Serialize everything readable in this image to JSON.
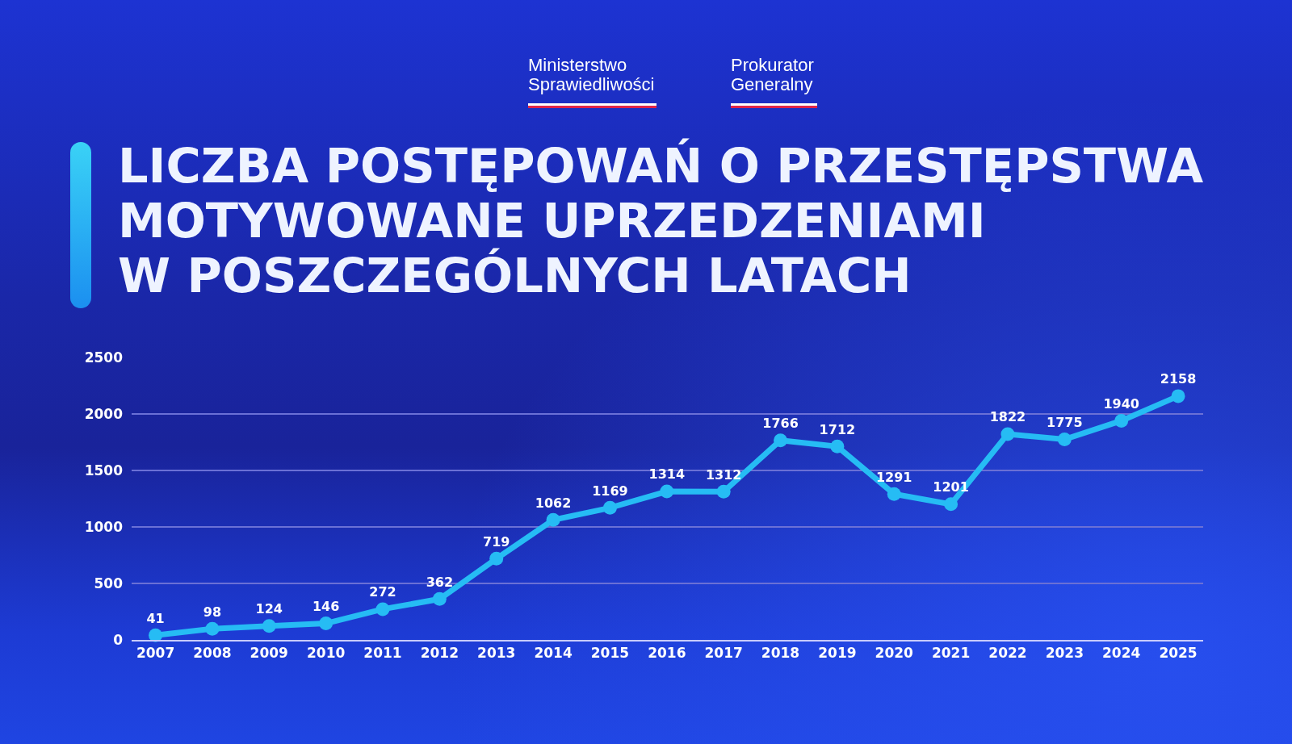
{
  "chart_data": {
    "type": "line",
    "title": "LICZBA POSTĘPOWAŃ O PRZESTĘPSTWA\nMOTYWOWANE UPRZEDZENIAMI\nW POSZCZEGÓLNYCH LATACH",
    "annotations": [
      "Ministerstwo Sprawiedliwości",
      "Prokurator Generalny"
    ],
    "categories": [
      "2007",
      "2008",
      "2009",
      "2010",
      "2011",
      "2012",
      "2013",
      "2014",
      "2015",
      "2016",
      "2017",
      "2018",
      "2019",
      "2020",
      "2021",
      "2022",
      "2023",
      "2024",
      "2025"
    ],
    "values": [
      41,
      98,
      124,
      146,
      272,
      362,
      719,
      1062,
      1169,
      1314,
      1312,
      1766,
      1712,
      1291,
      1201,
      1822,
      1775,
      1940,
      2158
    ],
    "color": "#26bcf4",
    "ylim": [
      0,
      2500
    ],
    "yticks": [
      0,
      500,
      1000,
      1500,
      2000,
      2500
    ],
    "grid": "y",
    "marker": "circle",
    "line_style": "solid",
    "data_labels": true
  }
}
